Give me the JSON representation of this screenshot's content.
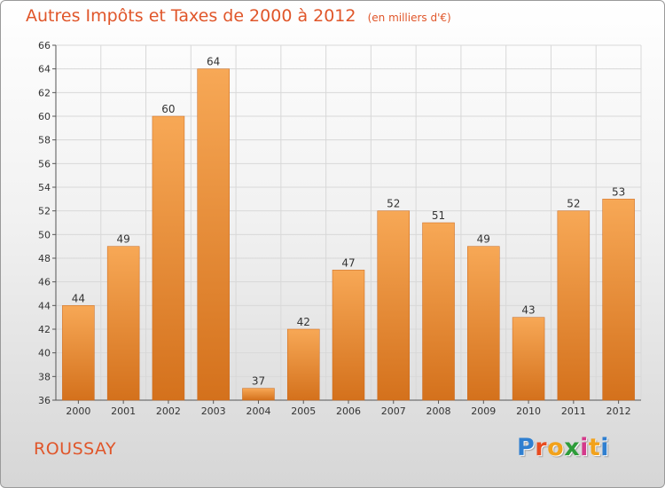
{
  "title": "Autres Impôts et Taxes de 2000 à 2012",
  "unit_note": "(en milliers d'€)",
  "city": "ROUSSAY",
  "brand": {
    "text": "Proxiti",
    "letter_colors": [
      "#2f7fd0",
      "#e84c20",
      "#f2a21b",
      "#2e9c3a",
      "#d43a8b",
      "#f2a21b",
      "#2f7fd0"
    ]
  },
  "colors": {
    "bar_top": "#f7a856",
    "bar_bottom": "#d4711c",
    "title": "#e0562a",
    "axis_text": "#333333",
    "grid": "#d8d8d8"
  },
  "chart_data": {
    "type": "bar",
    "title": "Autres Impôts et Taxes de 2000 à 2012",
    "subtitle": "(en milliers d'€)",
    "xlabel": "",
    "ylabel": "",
    "categories": [
      "2000",
      "2001",
      "2002",
      "2003",
      "2004",
      "2005",
      "2006",
      "2007",
      "2008",
      "2009",
      "2010",
      "2011",
      "2012"
    ],
    "values": [
      44,
      49,
      60,
      64,
      37,
      42,
      47,
      52,
      51,
      49,
      43,
      52,
      53
    ],
    "ylim": [
      36,
      66
    ],
    "yticks": [
      36,
      38,
      40,
      42,
      44,
      46,
      48,
      50,
      52,
      54,
      56,
      58,
      60,
      62,
      64,
      66
    ],
    "data_labels": true,
    "grid": true,
    "legend": "none"
  }
}
